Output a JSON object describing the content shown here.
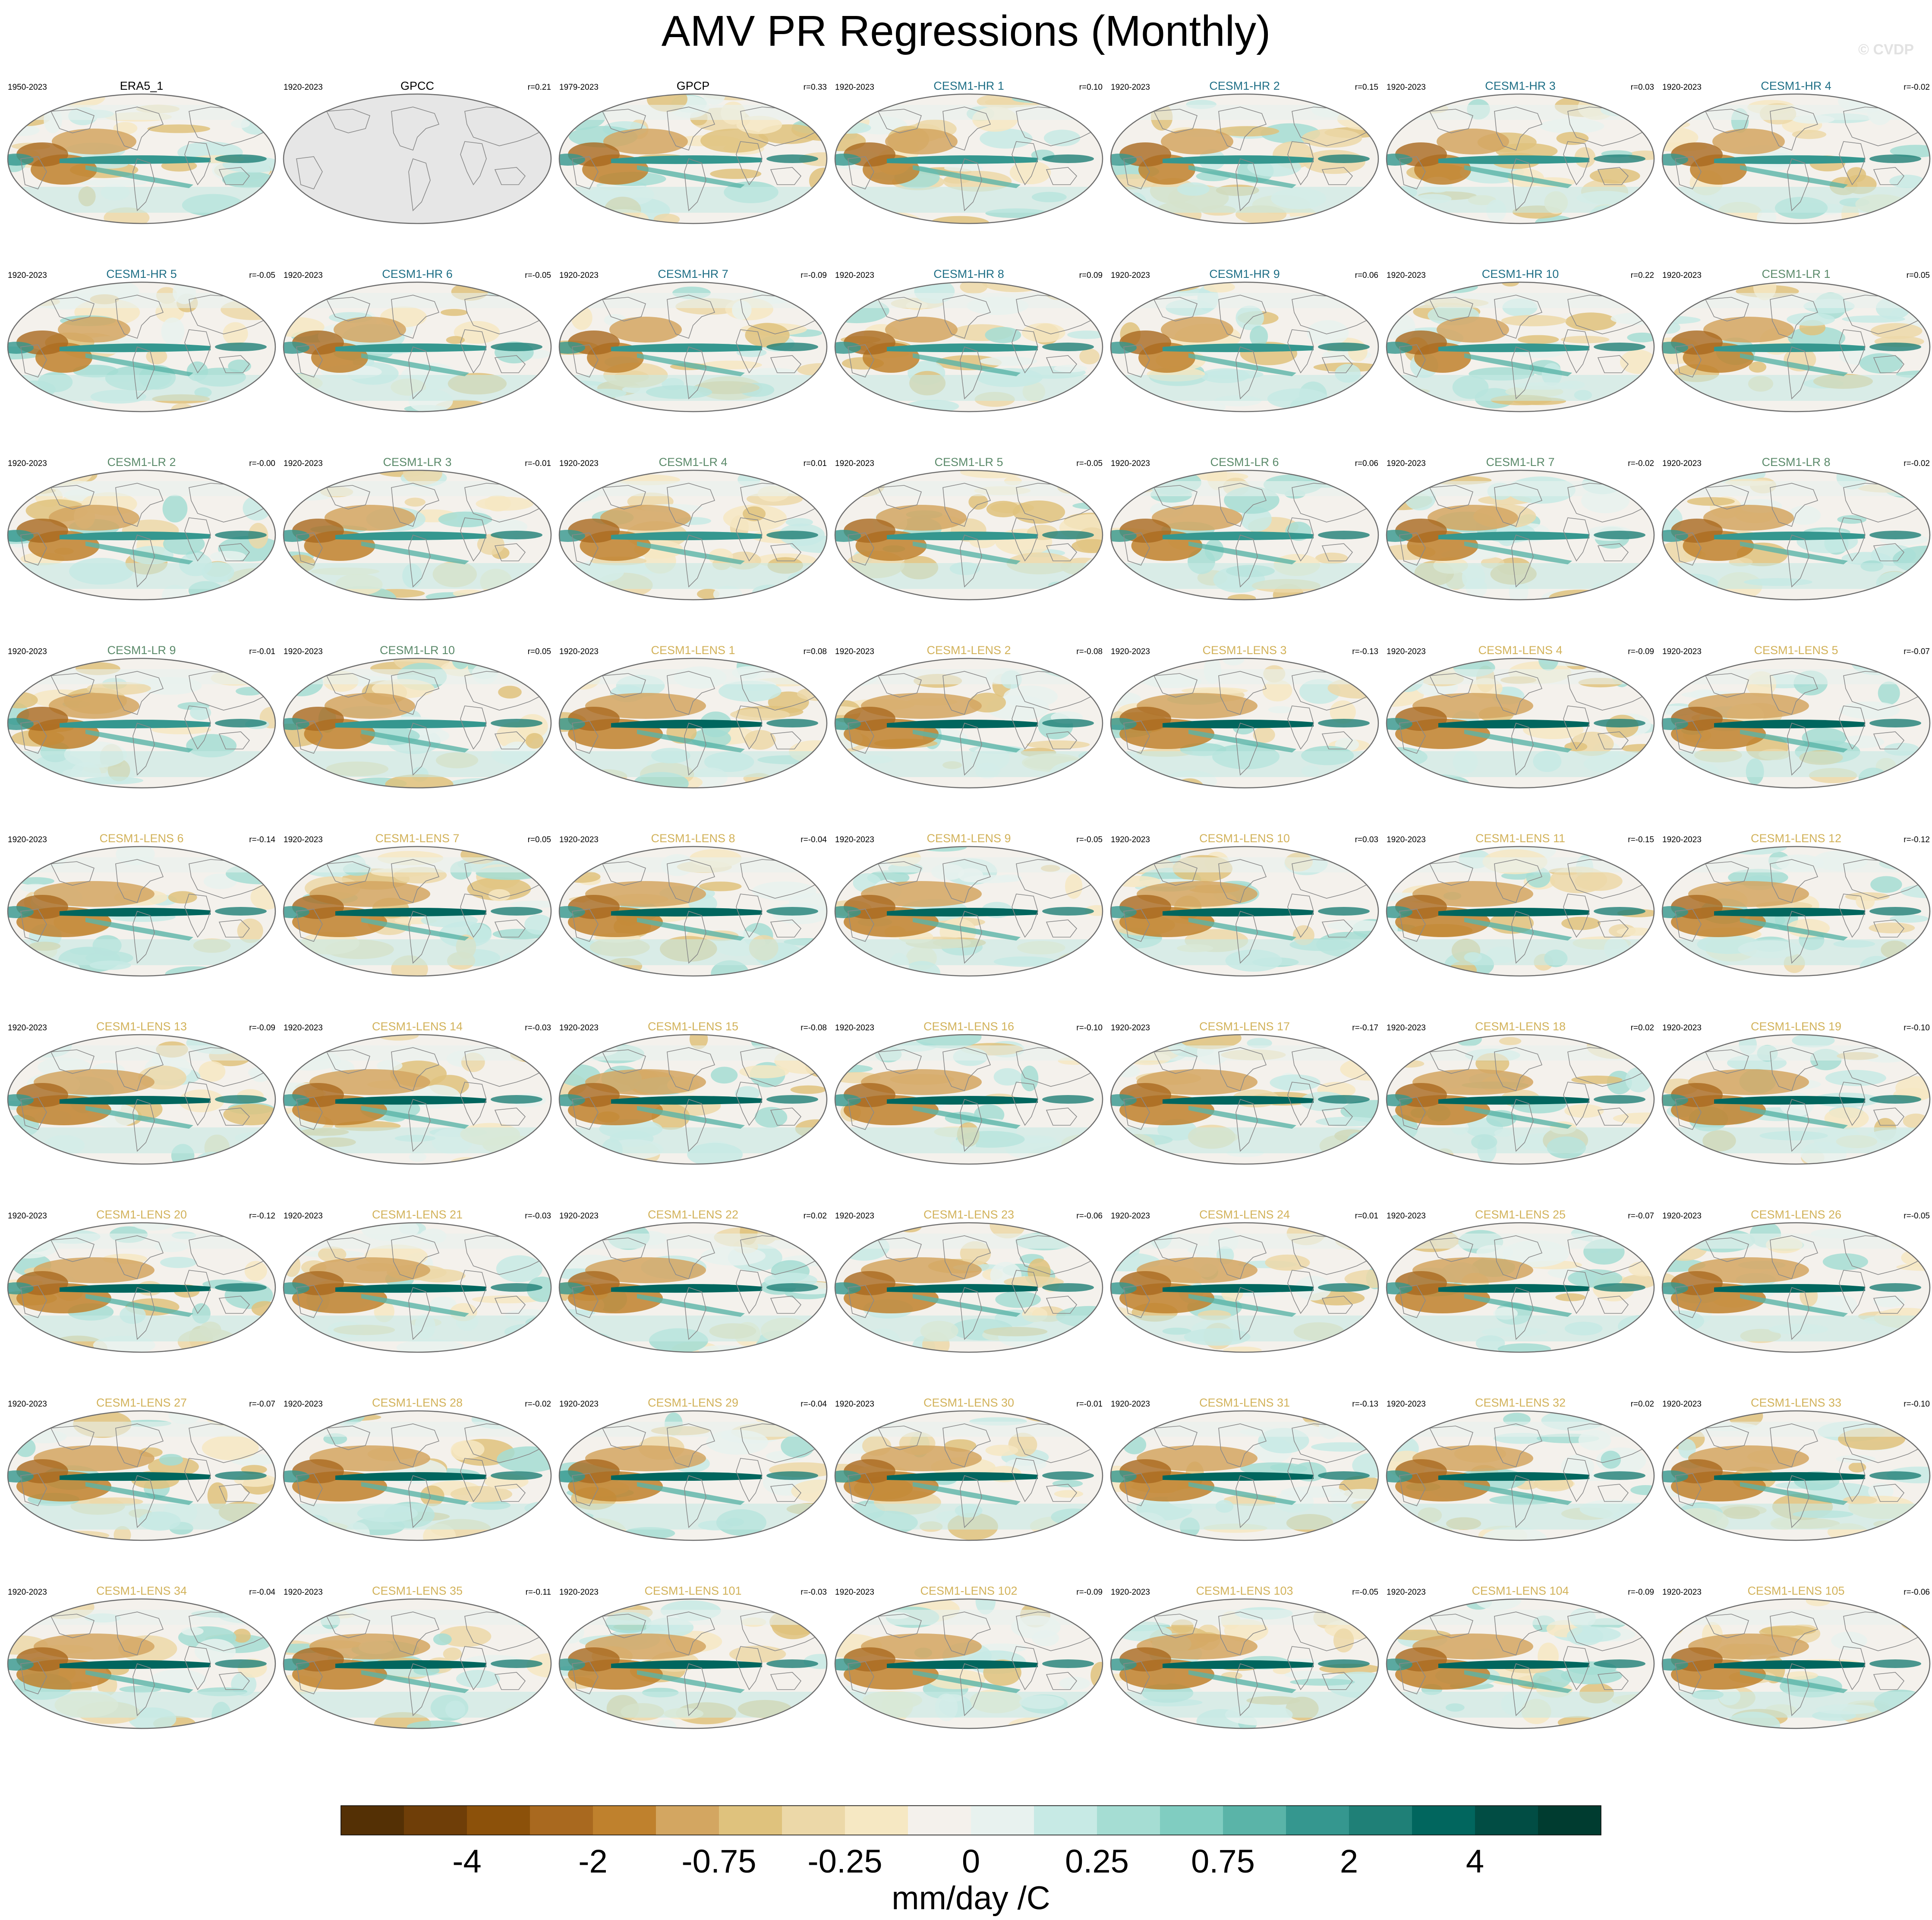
{
  "title": "AMV PR Regressions (Monthly)",
  "credit": "© CVDP",
  "colors": {
    "obs_title": "#000000",
    "hr_title": "#1f6f86",
    "lr_title": "#5b8a6a",
    "lens_title": "#d2b25a",
    "land_outline": "#8a8a8a",
    "map_border": "#6e6e6e",
    "missing": "#e6e6e6"
  },
  "chart_data": {
    "type": "heatmap",
    "variable": "AMV PR Regressions (Monthly)",
    "units": "mm/day /C",
    "colorbar": {
      "colors": [
        "#543005",
        "#6f3e08",
        "#8c510a",
        "#a9691f",
        "#bf812d",
        "#d3a661",
        "#dfc27d",
        "#ecd8a8",
        "#f6e8c3",
        "#f4f1ec",
        "#e8f2ef",
        "#c7eae5",
        "#a5ddd3",
        "#80cdc1",
        "#5ab4a8",
        "#35978f",
        "#1f8077",
        "#01665e",
        "#014d44",
        "#003c30"
      ],
      "tick_labels": [
        "-4",
        "-2",
        "-0.75",
        "-0.25",
        "0",
        "0.25",
        "0.75",
        "2",
        "4"
      ]
    },
    "panels": [
      {
        "name": "ERA5_1",
        "period": "1950-2023",
        "r": "",
        "group": "obs"
      },
      {
        "name": "GPCC",
        "period": "1920-2023",
        "r": "r=0.21",
        "group": "obs"
      },
      {
        "name": "GPCP",
        "period": "1979-2023",
        "r": "r=0.33",
        "group": "obs"
      },
      {
        "name": "CESM1-HR 1",
        "period": "1920-2023",
        "r": "r=0.10",
        "group": "hr"
      },
      {
        "name": "CESM1-HR 2",
        "period": "1920-2023",
        "r": "r=0.15",
        "group": "hr"
      },
      {
        "name": "CESM1-HR 3",
        "period": "1920-2023",
        "r": "r=0.03",
        "group": "hr"
      },
      {
        "name": "CESM1-HR 4",
        "period": "1920-2023",
        "r": "r=-0.02",
        "group": "hr"
      },
      {
        "name": "CESM1-HR 5",
        "period": "1920-2023",
        "r": "r=-0.05",
        "group": "hr"
      },
      {
        "name": "CESM1-HR 6",
        "period": "1920-2023",
        "r": "r=-0.05",
        "group": "hr"
      },
      {
        "name": "CESM1-HR 7",
        "period": "1920-2023",
        "r": "r=-0.09",
        "group": "hr"
      },
      {
        "name": "CESM1-HR 8",
        "period": "1920-2023",
        "r": "r=0.09",
        "group": "hr"
      },
      {
        "name": "CESM1-HR 9",
        "period": "1920-2023",
        "r": "r=0.06",
        "group": "hr"
      },
      {
        "name": "CESM1-HR 10",
        "period": "1920-2023",
        "r": "r=0.22",
        "group": "hr"
      },
      {
        "name": "CESM1-LR 1",
        "period": "1920-2023",
        "r": "r=0.05",
        "group": "lr"
      },
      {
        "name": "CESM1-LR 2",
        "period": "1920-2023",
        "r": "r=-0.00",
        "group": "lr"
      },
      {
        "name": "CESM1-LR 3",
        "period": "1920-2023",
        "r": "r=-0.01",
        "group": "lr"
      },
      {
        "name": "CESM1-LR 4",
        "period": "1920-2023",
        "r": "r=0.01",
        "group": "lr"
      },
      {
        "name": "CESM1-LR 5",
        "period": "1920-2023",
        "r": "r=-0.05",
        "group": "lr"
      },
      {
        "name": "CESM1-LR 6",
        "period": "1920-2023",
        "r": "r=0.06",
        "group": "lr"
      },
      {
        "name": "CESM1-LR 7",
        "period": "1920-2023",
        "r": "r=-0.02",
        "group": "lr"
      },
      {
        "name": "CESM1-LR 8",
        "period": "1920-2023",
        "r": "r=-0.02",
        "group": "lr"
      },
      {
        "name": "CESM1-LR 9",
        "period": "1920-2023",
        "r": "r=-0.01",
        "group": "lr"
      },
      {
        "name": "CESM1-LR 10",
        "period": "1920-2023",
        "r": "r=0.05",
        "group": "lr"
      },
      {
        "name": "CESM1-LENS 1",
        "period": "1920-2023",
        "r": "r=0.08",
        "group": "lens"
      },
      {
        "name": "CESM1-LENS 2",
        "period": "1920-2023",
        "r": "r=-0.08",
        "group": "lens"
      },
      {
        "name": "CESM1-LENS 3",
        "period": "1920-2023",
        "r": "r=-0.13",
        "group": "lens"
      },
      {
        "name": "CESM1-LENS 4",
        "period": "1920-2023",
        "r": "r=-0.09",
        "group": "lens"
      },
      {
        "name": "CESM1-LENS 5",
        "period": "1920-2023",
        "r": "r=-0.07",
        "group": "lens"
      },
      {
        "name": "CESM1-LENS 6",
        "period": "1920-2023",
        "r": "r=-0.14",
        "group": "lens"
      },
      {
        "name": "CESM1-LENS 7",
        "period": "1920-2023",
        "r": "r=0.05",
        "group": "lens"
      },
      {
        "name": "CESM1-LENS 8",
        "period": "1920-2023",
        "r": "r=-0.04",
        "group": "lens"
      },
      {
        "name": "CESM1-LENS 9",
        "period": "1920-2023",
        "r": "r=-0.05",
        "group": "lens"
      },
      {
        "name": "CESM1-LENS 10",
        "period": "1920-2023",
        "r": "r=0.03",
        "group": "lens"
      },
      {
        "name": "CESM1-LENS 11",
        "period": "1920-2023",
        "r": "r=-0.15",
        "group": "lens"
      },
      {
        "name": "CESM1-LENS 12",
        "period": "1920-2023",
        "r": "r=-0.12",
        "group": "lens"
      },
      {
        "name": "CESM1-LENS 13",
        "period": "1920-2023",
        "r": "r=-0.09",
        "group": "lens"
      },
      {
        "name": "CESM1-LENS 14",
        "period": "1920-2023",
        "r": "r=-0.03",
        "group": "lens"
      },
      {
        "name": "CESM1-LENS 15",
        "period": "1920-2023",
        "r": "r=-0.08",
        "group": "lens"
      },
      {
        "name": "CESM1-LENS 16",
        "period": "1920-2023",
        "r": "r=-0.10",
        "group": "lens"
      },
      {
        "name": "CESM1-LENS 17",
        "period": "1920-2023",
        "r": "r=-0.17",
        "group": "lens"
      },
      {
        "name": "CESM1-LENS 18",
        "period": "1920-2023",
        "r": "r=0.02",
        "group": "lens"
      },
      {
        "name": "CESM1-LENS 19",
        "period": "1920-2023",
        "r": "r=-0.10",
        "group": "lens"
      },
      {
        "name": "CESM1-LENS 20",
        "period": "1920-2023",
        "r": "r=-0.12",
        "group": "lens"
      },
      {
        "name": "CESM1-LENS 21",
        "period": "1920-2023",
        "r": "r=-0.03",
        "group": "lens"
      },
      {
        "name": "CESM1-LENS 22",
        "period": "1920-2023",
        "r": "r=0.02",
        "group": "lens"
      },
      {
        "name": "CESM1-LENS 23",
        "period": "1920-2023",
        "r": "r=-0.06",
        "group": "lens"
      },
      {
        "name": "CESM1-LENS 24",
        "period": "1920-2023",
        "r": "r=0.01",
        "group": "lens"
      },
      {
        "name": "CESM1-LENS 25",
        "period": "1920-2023",
        "r": "r=-0.07",
        "group": "lens"
      },
      {
        "name": "CESM1-LENS 26",
        "period": "1920-2023",
        "r": "r=-0.05",
        "group": "lens"
      },
      {
        "name": "CESM1-LENS 27",
        "period": "1920-2023",
        "r": "r=-0.07",
        "group": "lens"
      },
      {
        "name": "CESM1-LENS 28",
        "period": "1920-2023",
        "r": "r=-0.02",
        "group": "lens"
      },
      {
        "name": "CESM1-LENS 29",
        "period": "1920-2023",
        "r": "r=-0.04",
        "group": "lens"
      },
      {
        "name": "CESM1-LENS 30",
        "period": "1920-2023",
        "r": "r=-0.01",
        "group": "lens"
      },
      {
        "name": "CESM1-LENS 31",
        "period": "1920-2023",
        "r": "r=-0.13",
        "group": "lens"
      },
      {
        "name": "CESM1-LENS 32",
        "period": "1920-2023",
        "r": "r=0.02",
        "group": "lens"
      },
      {
        "name": "CESM1-LENS 33",
        "period": "1920-2023",
        "r": "r=-0.10",
        "group": "lens"
      },
      {
        "name": "CESM1-LENS 34",
        "period": "1920-2023",
        "r": "r=-0.04",
        "group": "lens"
      },
      {
        "name": "CESM1-LENS 35",
        "period": "1920-2023",
        "r": "r=-0.11",
        "group": "lens"
      },
      {
        "name": "CESM1-LENS 101",
        "period": "1920-2023",
        "r": "r=-0.03",
        "group": "lens"
      },
      {
        "name": "CESM1-LENS 102",
        "period": "1920-2023",
        "r": "r=-0.09",
        "group": "lens"
      },
      {
        "name": "CESM1-LENS 103",
        "period": "1920-2023",
        "r": "r=-0.05",
        "group": "lens"
      },
      {
        "name": "CESM1-LENS 104",
        "period": "1920-2023",
        "r": "r=-0.09",
        "group": "lens"
      },
      {
        "name": "CESM1-LENS 105",
        "period": "1920-2023",
        "r": "r=-0.06",
        "group": "lens"
      }
    ]
  }
}
